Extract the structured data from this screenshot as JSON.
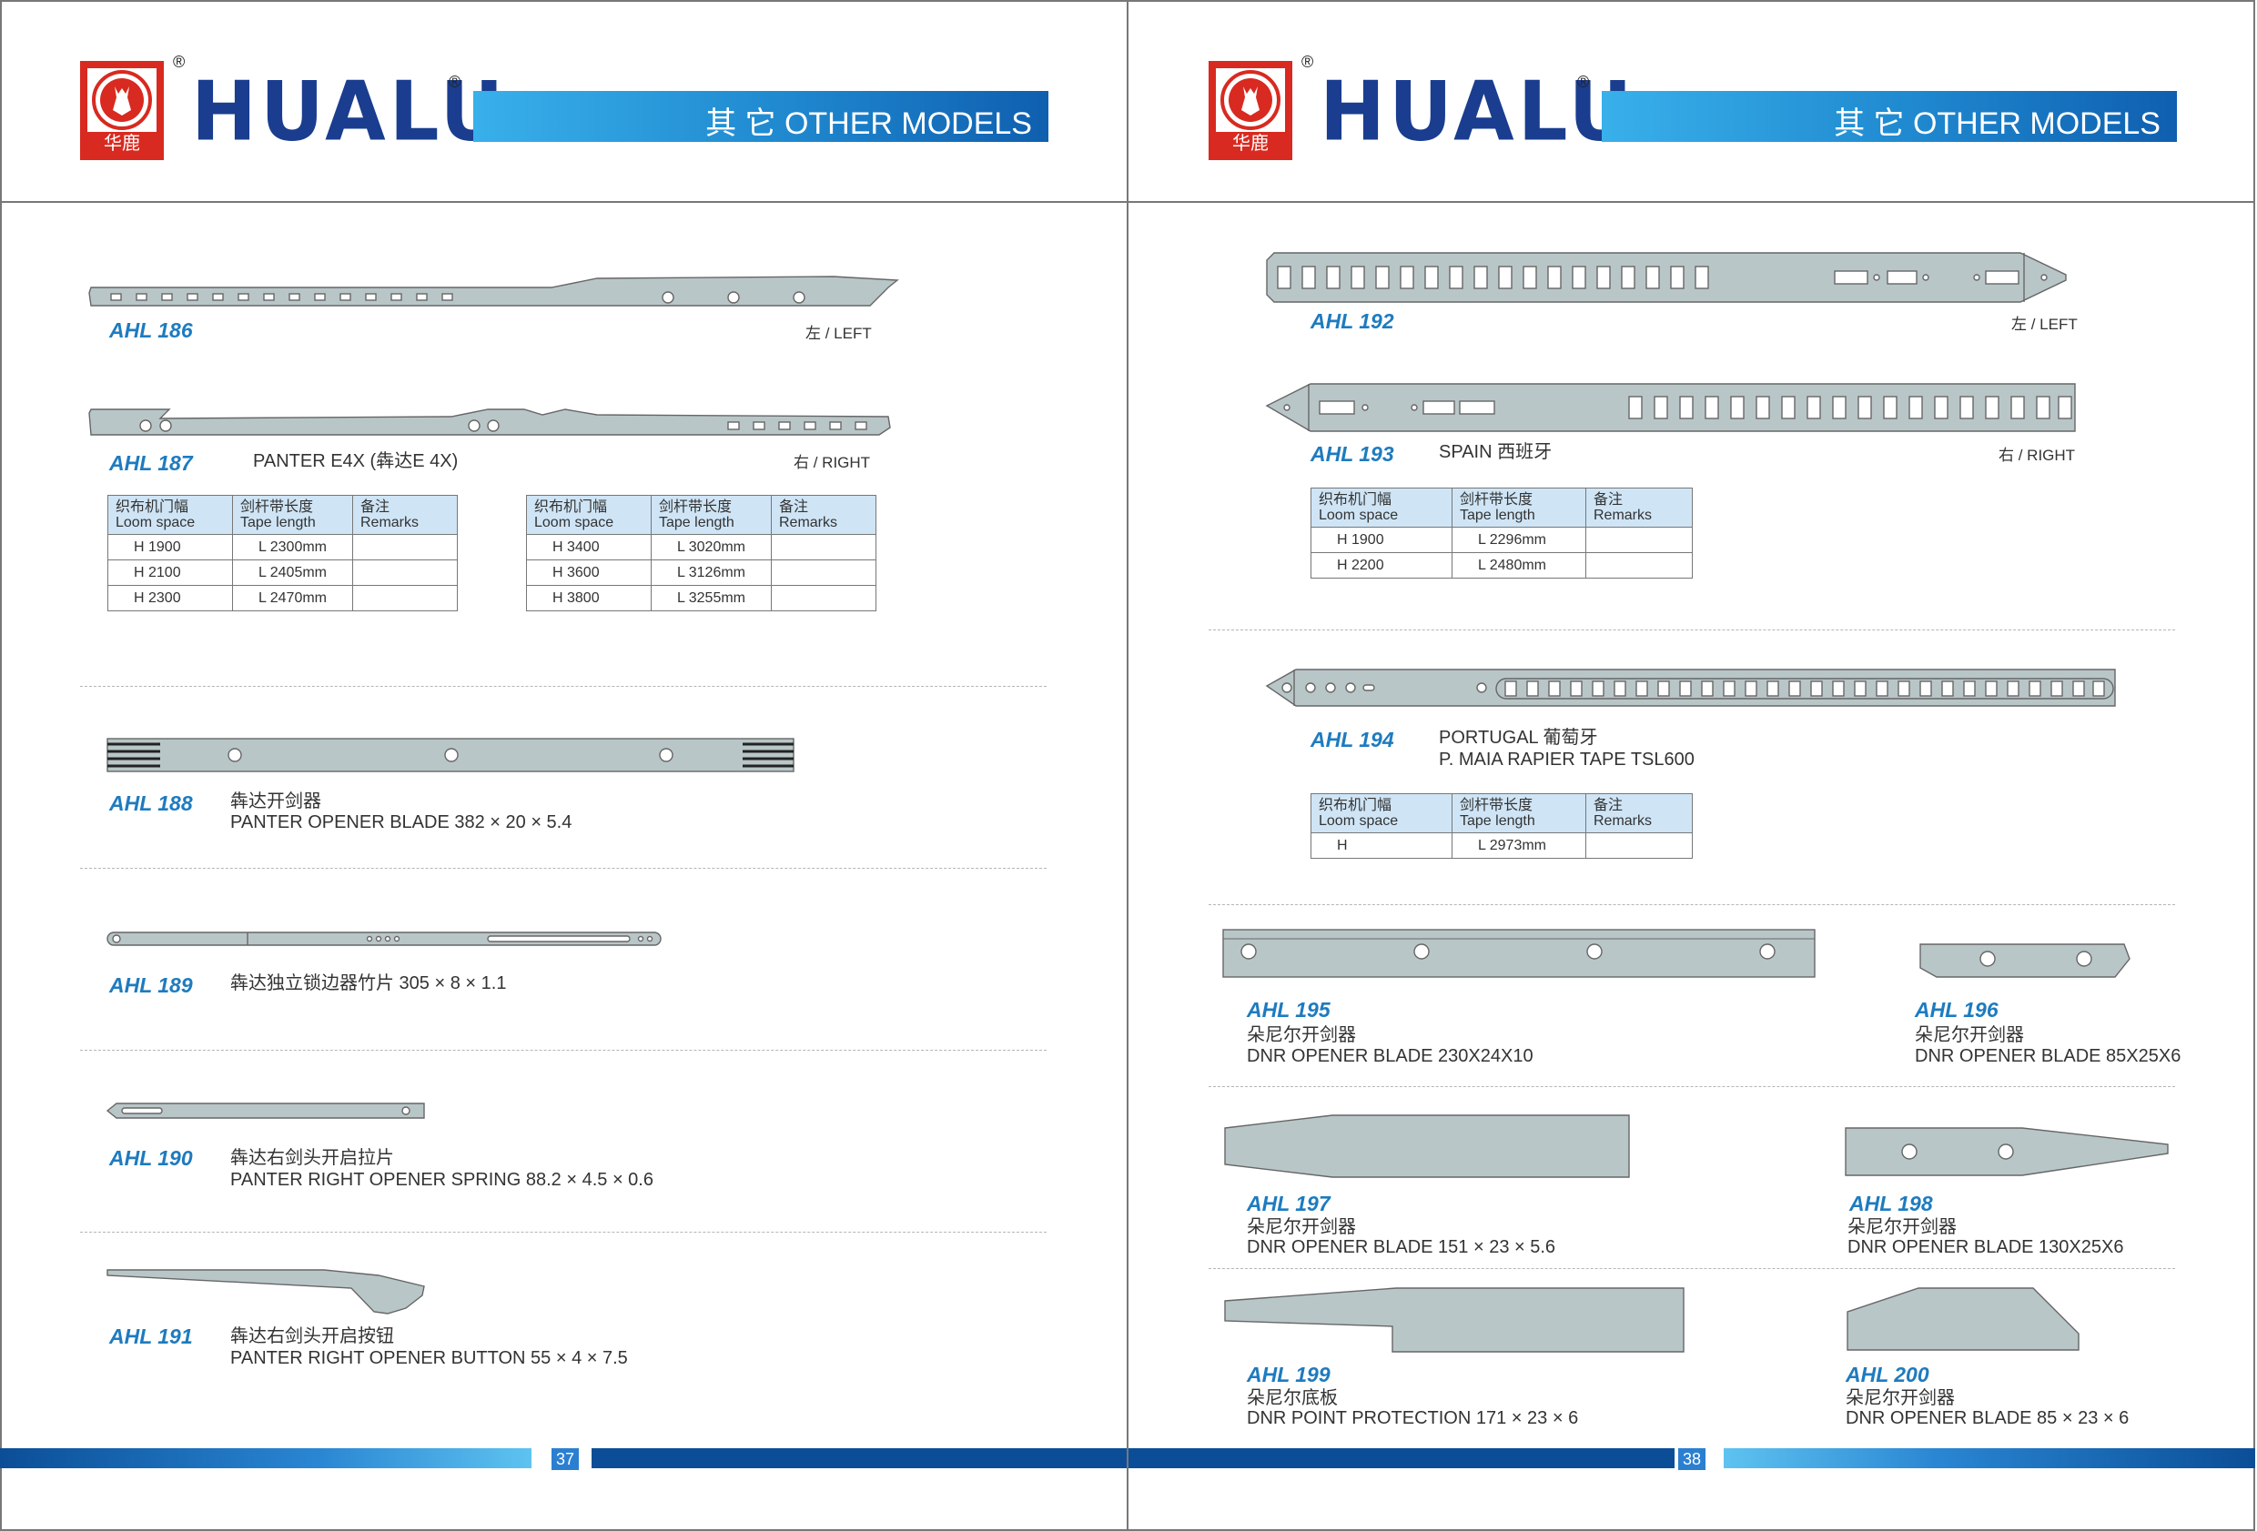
{
  "brand": {
    "name": "HUALU",
    "logo_cn": "华鹿",
    "reg_mark": "®",
    "banner": "其 它 OTHER MODELS"
  },
  "table_headers": {
    "loom_cn": "织布机门幅",
    "loom_en": "Loom space",
    "tape_cn": "剑杆带长度",
    "tape_en": "Tape length",
    "rem_cn": "备注",
    "rem_en": "Remarks"
  },
  "left": {
    "page_number": "37",
    "ahl186": {
      "model": "AHL 186",
      "side": "左 / LEFT"
    },
    "ahl187": {
      "model": "AHL 187",
      "desc": "PANTER E4X (犇达E 4X)",
      "side": "右 / RIGHT",
      "table_a": [
        [
          "H 1900",
          "L 2300mm",
          ""
        ],
        [
          "H 2100",
          "L 2405mm",
          ""
        ],
        [
          "H 2300",
          "L 2470mm",
          ""
        ]
      ],
      "table_b": [
        [
          "H 3400",
          "L 3020mm",
          ""
        ],
        [
          "H 3600",
          "L 3126mm",
          ""
        ],
        [
          "H 3800",
          "L 3255mm",
          ""
        ]
      ]
    },
    "ahl188": {
      "model": "AHL 188",
      "line1": "犇达开剑器",
      "line2": "PANTER OPENER BLADE 382 × 20 × 5.4"
    },
    "ahl189": {
      "model": "AHL 189",
      "line1": "犇达独立锁边器竹片 305 × 8 × 1.1"
    },
    "ahl190": {
      "model": "AHL 190",
      "line1": "犇达右剑头开启拉片",
      "line2": "PANTER RIGHT OPENER SPRING 88.2 × 4.5 × 0.6"
    },
    "ahl191": {
      "model": "AHL 191",
      "line1": "犇达右剑头开启按钮",
      "line2": "PANTER RIGHT OPENER BUTTON 55 × 4 × 7.5"
    }
  },
  "right": {
    "page_number": "38",
    "ahl192": {
      "model": "AHL 192",
      "side": "左 / LEFT"
    },
    "ahl193": {
      "model": "AHL 193",
      "desc": "SPAIN 西班牙",
      "side": "右 / RIGHT",
      "table": [
        [
          "H 1900",
          "L 2296mm",
          ""
        ],
        [
          "H 2200",
          "L 2480mm",
          ""
        ]
      ]
    },
    "ahl194": {
      "model": "AHL 194",
      "line1": "PORTUGAL 葡萄牙",
      "line2": "P. MAIA RAPIER TAPE TSL600",
      "table": [
        [
          "H",
          "L 2973mm",
          ""
        ]
      ]
    },
    "ahl195": {
      "model": "AHL 195",
      "line1": "朵尼尔开剑器",
      "line2": "DNR OPENER BLADE 230X24X10"
    },
    "ahl196": {
      "model": "AHL 196",
      "line1": "朵尼尔开剑器",
      "line2": "DNR OPENER BLADE  85X25X6"
    },
    "ahl197": {
      "model": "AHL 197",
      "line1": "朵尼尔开剑器",
      "line2": "DNR OPENER BLADE 151 × 23 × 5.6"
    },
    "ahl198": {
      "model": "AHL 198",
      "line1": "朵尼尔开剑器",
      "line2": "DNR OPENER BLADE  130X25X6"
    },
    "ahl199": {
      "model": "AHL 199",
      "line1": "朵尼尔底板",
      "line2": "DNR POINT PROTECTION 171 × 23 × 6"
    },
    "ahl200": {
      "model": "AHL 200",
      "line1": "朵尼尔开剑器",
      "line2": "DNR OPENER BLADE 85 × 23 × 6"
    }
  }
}
